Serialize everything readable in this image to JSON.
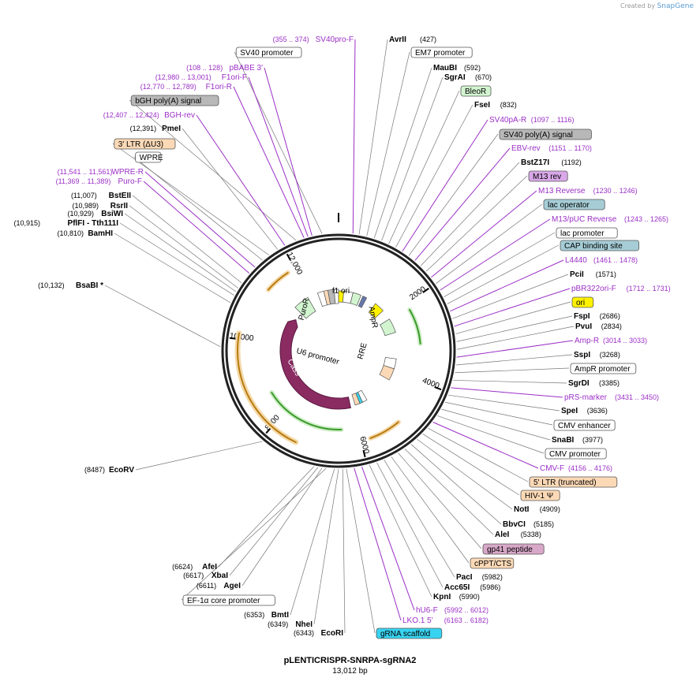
{
  "credit": {
    "text": "Created by",
    "brand": "SnapGene"
  },
  "plasmid": {
    "name": "pLENTICRISPR-SNRPA-sgRNA2",
    "length": "13,012 bp"
  },
  "colors": {
    "enzyme": "#000000",
    "primer": "#9b2fc6",
    "primer_line": "#9b2fc6",
    "grey_feature": "#b8b8b8",
    "peach_feature": "#fcd9b6",
    "green_feature": "#d2f5d0",
    "purple_feature": "#d9a8e8",
    "teal_feature": "#a6cdd6",
    "cyan_feature": "#38d3f0",
    "yellow_feature": "#fff200",
    "mauve_feature": "#d8a8c8",
    "cas9": "#8a2b62"
  },
  "ticks": [
    "2000",
    "4000",
    "6000",
    "8000",
    "10,000",
    "12,000"
  ],
  "inner_labels": [
    "f1 ori",
    "PuroR",
    "AmpR",
    "RRE",
    "U6 promoter",
    "Cas9"
  ],
  "top_labels": [
    {
      "name": "SV40pro-F",
      "pos": "(355 .. 374)",
      "kind": "primer"
    },
    {
      "name": "SV40 promoter",
      "kind": "box",
      "color": "white"
    },
    {
      "name": "pBABE 3'",
      "pos": "(108 .. 128)",
      "kind": "primer"
    },
    {
      "name": "F1ori-F",
      "pos": "(12,980 .. 13,001)",
      "kind": "primer"
    },
    {
      "name": "F1ori-R",
      "pos": "(12,770 .. 12,789)",
      "kind": "primer"
    },
    {
      "name": "bGH poly(A) signal",
      "kind": "box",
      "color": "grey"
    },
    {
      "name": "BGH-rev",
      "pos": "(12,407 .. 12,424)",
      "kind": "primer"
    },
    {
      "name": "PmeI",
      "pos": "(12,391)",
      "kind": "enzyme"
    },
    {
      "name": "3' LTR (ΔU3)",
      "kind": "box",
      "color": "peach"
    },
    {
      "name": "WPRE",
      "kind": "box",
      "color": "white"
    },
    {
      "name": "WPRE-R",
      "pos": "(11,541 .. 11,561)",
      "kind": "primer"
    },
    {
      "name": "Puro-F",
      "pos": "(11,369 .. 11,389)",
      "kind": "primer"
    },
    {
      "name": "BstEII",
      "pos": "(11,007)",
      "kind": "enzyme"
    },
    {
      "name": "RsrII",
      "pos": "(10,989)",
      "kind": "enzyme"
    },
    {
      "name": "BsiWI",
      "pos": "(10,929)",
      "kind": "enzyme"
    },
    {
      "name": "PflFI - Tth111I",
      "pos": "(10,915)",
      "kind": "enzyme"
    },
    {
      "name": "BamHI",
      "pos": "(10,810)",
      "kind": "enzyme"
    },
    {
      "name": "BsaBI *",
      "pos": "(10,132)",
      "kind": "enzyme"
    },
    {
      "name": "EcoRV",
      "pos": "(8487)",
      "kind": "enzyme"
    }
  ],
  "right_labels": [
    {
      "name": "AvrII",
      "pos": "(427)",
      "kind": "enzyme"
    },
    {
      "name": "EM7 promoter",
      "kind": "box",
      "color": "white"
    },
    {
      "name": "MauBI",
      "pos": "(592)",
      "kind": "enzyme"
    },
    {
      "name": "SgrAI",
      "pos": "(670)",
      "kind": "enzyme"
    },
    {
      "name": "BleoR",
      "kind": "box",
      "color": "green"
    },
    {
      "name": "FseI",
      "pos": "(832)",
      "kind": "enzyme"
    },
    {
      "name": "SV40pA-R",
      "pos": "(1097 .. 1116)",
      "kind": "primer"
    },
    {
      "name": "SV40 poly(A) signal",
      "kind": "box",
      "color": "grey"
    },
    {
      "name": "EBV-rev",
      "pos": "(1151 .. 1170)",
      "kind": "primer"
    },
    {
      "name": "BstZ17I",
      "pos": "(1192)",
      "kind": "enzyme"
    },
    {
      "name": "M13 rev",
      "kind": "box",
      "color": "purple"
    },
    {
      "name": "M13 Reverse",
      "pos": "(1230 .. 1246)",
      "kind": "primer"
    },
    {
      "name": "lac operator",
      "kind": "box",
      "color": "teal"
    },
    {
      "name": "M13/pUC Reverse",
      "pos": "(1243 .. 1265)",
      "kind": "primer"
    },
    {
      "name": "lac promoter",
      "kind": "box",
      "color": "white"
    },
    {
      "name": "CAP binding site",
      "kind": "box",
      "color": "teal"
    },
    {
      "name": "L4440",
      "pos": "(1461 .. 1478)",
      "kind": "primer"
    },
    {
      "name": "PciI",
      "pos": "(1571)",
      "kind": "enzyme"
    },
    {
      "name": "pBR322ori-F",
      "pos": "(1712 .. 1731)",
      "kind": "primer"
    },
    {
      "name": "ori",
      "kind": "box",
      "color": "yellow"
    },
    {
      "name": "FspI",
      "pos": "(2686)",
      "kind": "enzyme"
    },
    {
      "name": "PvuI",
      "pos": "(2834)",
      "kind": "enzyme"
    },
    {
      "name": "Amp-R",
      "pos": "(3014 .. 3033)",
      "kind": "primer"
    },
    {
      "name": "SspI",
      "pos": "(3268)",
      "kind": "enzyme"
    },
    {
      "name": "AmpR promoter",
      "kind": "box",
      "color": "white"
    },
    {
      "name": "SgrDI",
      "pos": "(3385)",
      "kind": "enzyme"
    },
    {
      "name": "pRS-marker",
      "pos": "(3431 .. 3450)",
      "kind": "primer"
    },
    {
      "name": "SpeI",
      "pos": "(3636)",
      "kind": "enzyme"
    },
    {
      "name": "CMV enhancer",
      "kind": "box",
      "color": "white"
    },
    {
      "name": "SnaBI",
      "pos": "(3977)",
      "kind": "enzyme"
    },
    {
      "name": "CMV promoter",
      "kind": "box",
      "color": "white"
    },
    {
      "name": "CMV-F",
      "pos": "(4156 .. 4176)",
      "kind": "primer"
    },
    {
      "name": "5' LTR (truncated)",
      "kind": "box",
      "color": "peach"
    },
    {
      "name": "HIV-1 Ψ",
      "kind": "box",
      "color": "peach"
    },
    {
      "name": "NotI",
      "pos": "(4909)",
      "kind": "enzyme"
    },
    {
      "name": "BbvCI",
      "pos": "(5185)",
      "kind": "enzyme"
    },
    {
      "name": "AleI",
      "pos": "(5338)",
      "kind": "enzyme"
    },
    {
      "name": "gp41 peptide",
      "kind": "box",
      "color": "mauve"
    },
    {
      "name": "cPPT/CTS",
      "kind": "box",
      "color": "peach"
    },
    {
      "name": "PacI",
      "pos": "(5982)",
      "kind": "enzyme"
    },
    {
      "name": "Acc65I",
      "pos": "(5986)",
      "kind": "enzyme"
    },
    {
      "name": "KpnI",
      "pos": "(5990)",
      "kind": "enzyme"
    },
    {
      "name": "hU6-F",
      "pos": "(5992 .. 6012)",
      "kind": "primer"
    },
    {
      "name": "LKO.1 5'",
      "pos": "(6163 .. 6182)",
      "kind": "primer"
    },
    {
      "name": "gRNA scaffold",
      "kind": "box",
      "color": "cyan"
    }
  ],
  "bottom_left_labels": [
    {
      "name": "AfeI",
      "pos": "(6624)",
      "kind": "enzyme"
    },
    {
      "name": "XbaI",
      "pos": "(6617)",
      "kind": "enzyme"
    },
    {
      "name": "AgeI",
      "pos": "(6611)",
      "kind": "enzyme"
    },
    {
      "name": "EF-1α core promoter",
      "kind": "box",
      "color": "white"
    },
    {
      "name": "BmtI",
      "pos": "(6353)",
      "kind": "enzyme"
    },
    {
      "name": "NheI",
      "pos": "(6349)",
      "kind": "enzyme"
    },
    {
      "name": "EcoRI",
      "pos": "(6343)",
      "kind": "enzyme"
    }
  ]
}
